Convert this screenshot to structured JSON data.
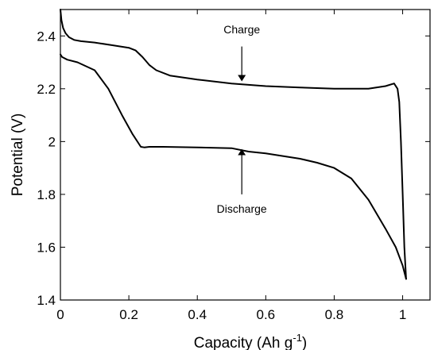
{
  "chart_data": {
    "type": "line",
    "xlabel": "Capacity (Ah g",
    "xlabel_superscript": "-1",
    "xlabel_close": ")",
    "ylabel": "Potential (V)",
    "xlim": [
      0,
      1.08
    ],
    "ylim": [
      1.4,
      2.5
    ],
    "xticks": [
      0,
      0.2,
      0.4,
      0.6,
      0.8,
      1
    ],
    "xtick_labels": [
      "0",
      "0.2",
      "0.4",
      "0.6",
      "0.8",
      "1"
    ],
    "yticks": [
      1.4,
      1.6,
      1.8,
      2.0,
      2.2,
      2.4
    ],
    "ytick_labels": [
      "1.4",
      "1.6",
      "1.8",
      "2",
      "2.2",
      "2.4"
    ],
    "grid": false,
    "series": [
      {
        "name": "Charge",
        "x": [
          0.0,
          0.003,
          0.008,
          0.015,
          0.025,
          0.04,
          0.06,
          0.1,
          0.15,
          0.2,
          0.22,
          0.24,
          0.26,
          0.28,
          0.32,
          0.4,
          0.5,
          0.6,
          0.7,
          0.8,
          0.9,
          0.95,
          0.975,
          0.985,
          0.99,
          0.995,
          1.0,
          1.005,
          1.01
        ],
        "y": [
          2.5,
          2.46,
          2.43,
          2.41,
          2.395,
          2.385,
          2.38,
          2.375,
          2.365,
          2.355,
          2.345,
          2.32,
          2.29,
          2.27,
          2.25,
          2.235,
          2.22,
          2.21,
          2.205,
          2.2,
          2.2,
          2.21,
          2.22,
          2.2,
          2.15,
          2.0,
          1.8,
          1.6,
          1.48
        ]
      },
      {
        "name": "Discharge",
        "x": [
          0.0,
          0.005,
          0.02,
          0.05,
          0.1,
          0.14,
          0.18,
          0.21,
          0.235,
          0.245,
          0.26,
          0.3,
          0.4,
          0.5,
          0.55,
          0.6,
          0.7,
          0.75,
          0.8,
          0.85,
          0.9,
          0.95,
          0.98,
          1.0,
          1.01
        ],
        "y": [
          2.33,
          2.32,
          2.31,
          2.3,
          2.27,
          2.2,
          2.1,
          2.03,
          1.98,
          1.978,
          1.98,
          1.98,
          1.978,
          1.975,
          1.962,
          1.955,
          1.935,
          1.92,
          1.9,
          1.86,
          1.78,
          1.67,
          1.6,
          1.53,
          1.48
        ]
      }
    ],
    "annotations": [
      {
        "text": "Charge",
        "x": 0.53,
        "y": 2.41,
        "arrow_from": [
          0.53,
          2.36
        ],
        "arrow_to": [
          0.53,
          2.24
        ]
      },
      {
        "text": "Discharge",
        "x": 0.53,
        "y": 1.73,
        "arrow_from": [
          0.53,
          1.8
        ],
        "arrow_to": [
          0.53,
          1.96
        ]
      }
    ]
  }
}
